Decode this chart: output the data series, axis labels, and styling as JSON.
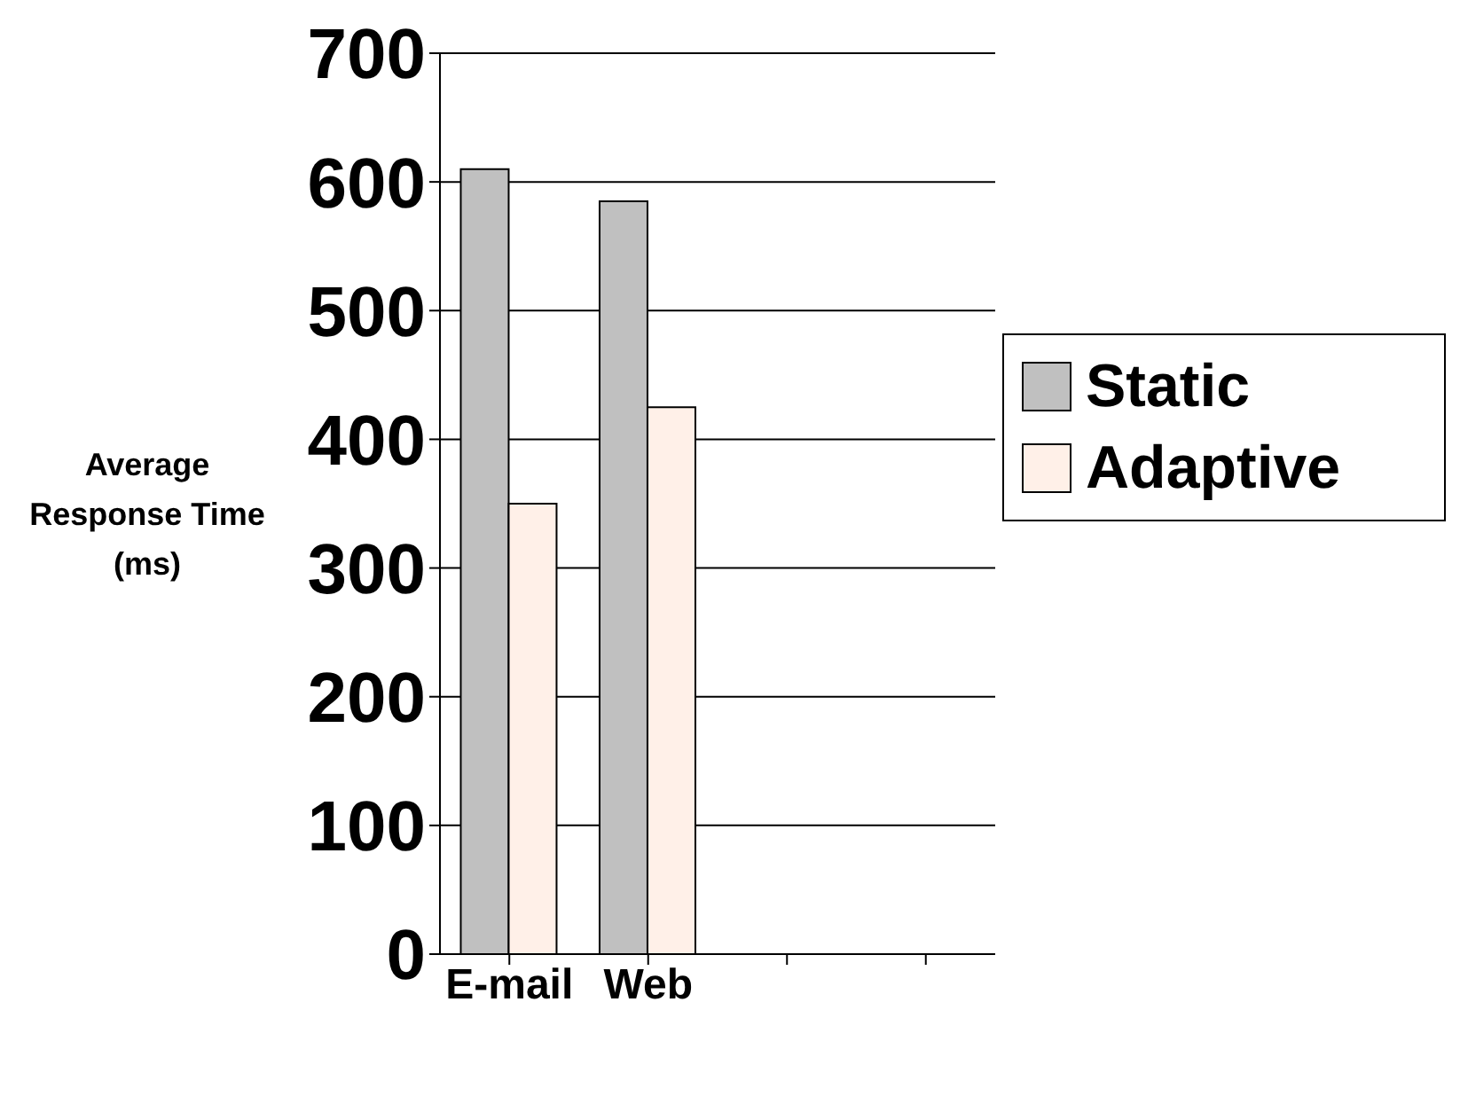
{
  "chart_data": {
    "type": "bar",
    "ylabel": "Average Response Time (ms)",
    "categories": [
      "E-mail",
      "Web",
      null,
      null
    ],
    "series": [
      {
        "name": "Static",
        "color": "#c0c0c0",
        "values": [
          610,
          585,
          null,
          null
        ]
      },
      {
        "name": "Adaptive",
        "color": "#fff0e8",
        "values": [
          350,
          425,
          null,
          null
        ]
      }
    ],
    "ylim": [
      0,
      700
    ],
    "yticks": [
      0,
      100,
      200,
      300,
      400,
      500,
      600,
      700
    ],
    "grid": "y",
    "legend": "right"
  }
}
